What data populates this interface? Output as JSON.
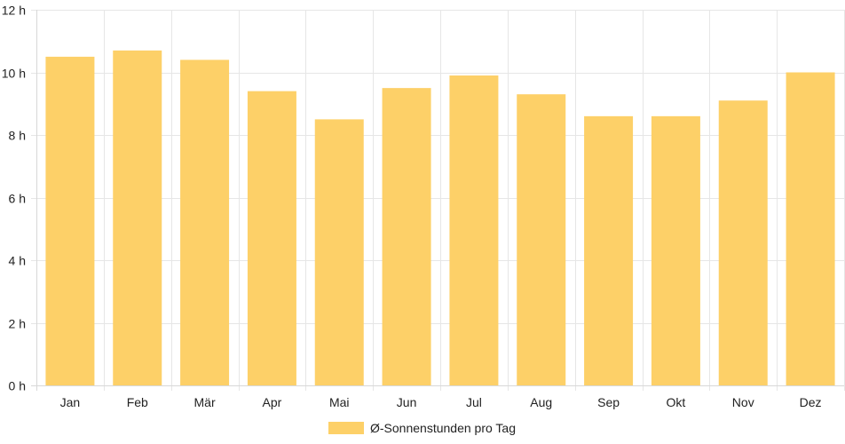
{
  "chart_data": {
    "type": "bar",
    "categories": [
      "Jan",
      "Feb",
      "Mär",
      "Apr",
      "Mai",
      "Jun",
      "Jul",
      "Aug",
      "Sep",
      "Okt",
      "Nov",
      "Dez"
    ],
    "series": [
      {
        "name": "Ø-Sonnenstunden pro Tag",
        "values": [
          10.5,
          10.7,
          10.4,
          9.4,
          8.5,
          9.5,
          9.9,
          9.3,
          8.6,
          8.6,
          9.1,
          10.0
        ],
        "color": "#fdd068"
      }
    ],
    "y_ticks": [
      "0 h",
      "2 h",
      "4 h",
      "6 h",
      "8 h",
      "10 h",
      "12 h"
    ],
    "ylim": [
      0,
      12
    ],
    "grid": true,
    "legend_position": "bottom"
  }
}
